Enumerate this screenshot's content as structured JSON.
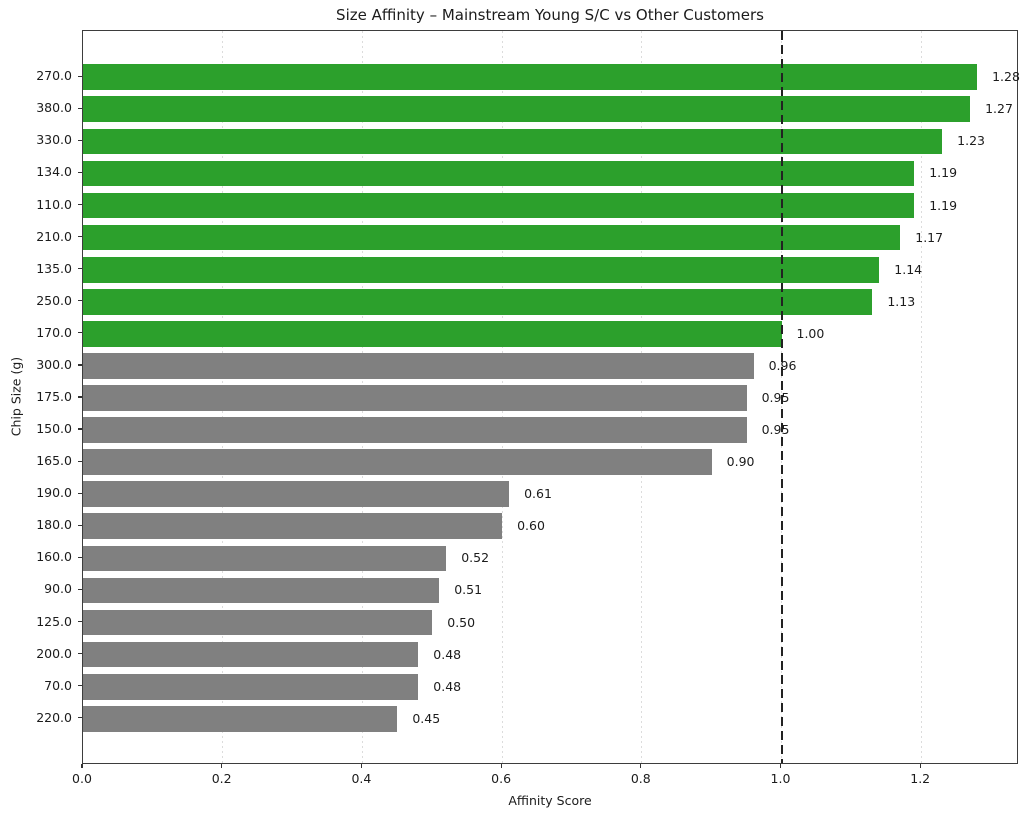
{
  "chart_data": {
    "type": "bar",
    "orientation": "horizontal",
    "title": "Size Affinity – Mainstream Young S/C vs Other Customers",
    "xlabel": "Affinity Score",
    "ylabel": "Chip Size (g)",
    "categories": [
      "270.0",
      "380.0",
      "330.0",
      "134.0",
      "110.0",
      "210.0",
      "135.0",
      "250.0",
      "170.0",
      "300.0",
      "175.0",
      "150.0",
      "165.0",
      "190.0",
      "180.0",
      "160.0",
      "90.0",
      "125.0",
      "200.0",
      "70.0",
      "220.0"
    ],
    "values": [
      1.28,
      1.27,
      1.23,
      1.19,
      1.19,
      1.17,
      1.14,
      1.13,
      1.0,
      0.96,
      0.95,
      0.95,
      0.9,
      0.61,
      0.6,
      0.52,
      0.51,
      0.5,
      0.48,
      0.48,
      0.45
    ],
    "threshold": 1.0,
    "threshold_line": {
      "x": 1.0,
      "style": "dashed",
      "color": "#222222"
    },
    "colors": {
      "above": "#2ca02c",
      "below": "#808080"
    },
    "xlim": [
      0,
      1.34
    ],
    "x_ticks": [
      0.0,
      0.2,
      0.4,
      0.6,
      0.8,
      1.0,
      1.2
    ],
    "grid": {
      "axis": "x",
      "style": "dotted",
      "color": "#dcdcdc"
    },
    "bar_height_fraction": 0.8,
    "value_label_decimals": 2
  }
}
